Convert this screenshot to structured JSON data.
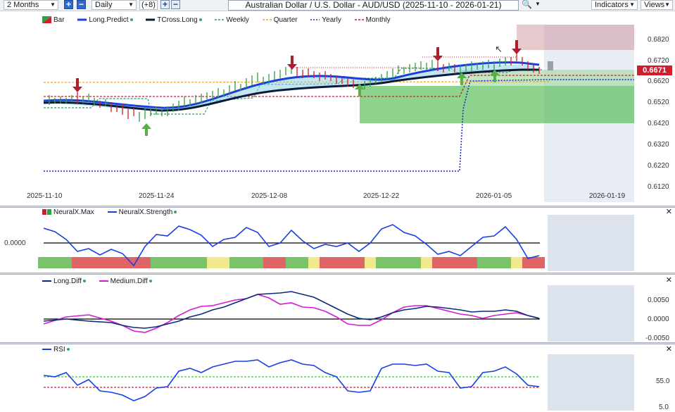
{
  "toolbar": {
    "range": "2 Months",
    "interval": "Daily",
    "offset": "(+8)",
    "symbol_title": "Australian Dollar / U.S. Dollar - AUD/USD (2025-11-10 - 2026-01-21)",
    "indicators_label": "Indicators",
    "views_label": "Views"
  },
  "main_pane": {
    "legend": [
      "Bar",
      "Long.Predict",
      "TCross.Long",
      "Weekly",
      "Quarter",
      "Yearly",
      "Monthly"
    ],
    "price_ticks": [
      "0.6820",
      "0.6720",
      "0.6620",
      "0.6520",
      "0.6420",
      "0.6320",
      "0.6220",
      "0.6120"
    ],
    "last_price": "0.6671",
    "date_ticks": [
      "2025-11-10",
      "2025-11-24",
      "2025-12-08",
      "2025-12-22",
      "2026-01-05",
      "2026-01-19"
    ]
  },
  "neural_pane": {
    "legend": [
      "NeuralX.Max",
      "NeuralX.Strength"
    ],
    "zero_label": "0.0000"
  },
  "diff_pane": {
    "legend": [
      "Long.Diff",
      "Medium.Diff"
    ],
    "ticks": [
      "0.0050",
      "0.0000",
      "-0.0050"
    ]
  },
  "rsi_pane": {
    "legend": [
      "RSI"
    ],
    "ticks": [
      "55.0",
      "5.0"
    ]
  },
  "colors": {
    "long_predict": "#1a3fe0",
    "tcross_long": "#0a1a3a",
    "weekly": "#2a9a6e",
    "quarter": "#f0a020",
    "yearly": "#1a28c8",
    "monthly": "#d01e2e",
    "medium_diff": "#d41ad4",
    "strength_green": "#79c36a",
    "strength_red": "#e06464",
    "strength_yellow": "#f0ea8c"
  }
}
